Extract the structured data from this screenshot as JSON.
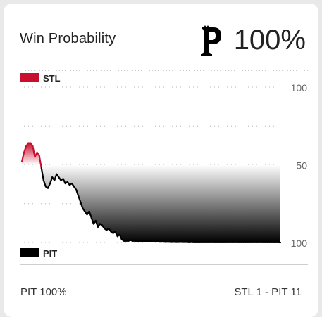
{
  "card": {
    "title": "Win Probability",
    "leader_pct": "100%",
    "leader_logo": "pirates-p-logo",
    "footer_left": "PIT 100%",
    "footer_right": "STL 1 - PIT 11"
  },
  "colors": {
    "away": "#c8102e",
    "home": "#000000"
  },
  "chart_data": {
    "type": "area",
    "title": "",
    "legend": [
      {
        "name": "STL",
        "color": "#c8102e",
        "position": "top-left"
      },
      {
        "name": "PIT",
        "color": "#000000",
        "position": "bottom-left"
      }
    ],
    "y_ticks": [
      "100",
      "50",
      "100"
    ],
    "y_tick_values": [
      100,
      50,
      0
    ],
    "y_tick_meaning": [
      "STL 100%",
      "even",
      "PIT 100%"
    ],
    "ylim": [
      0,
      100
    ],
    "grid": true,
    "x": [
      0,
      1,
      2,
      3,
      4,
      5,
      6,
      7,
      8,
      9,
      10,
      11,
      12,
      13,
      14,
      15,
      16,
      17,
      18,
      19,
      20,
      21,
      22,
      23,
      24,
      25,
      26,
      27,
      28,
      29,
      30,
      31,
      32,
      33,
      34,
      35,
      36,
      37,
      38,
      39,
      40,
      41,
      42,
      43,
      44,
      45,
      46,
      47,
      48,
      49,
      50,
      51,
      52,
      53,
      54,
      55,
      56,
      57,
      58,
      59,
      60,
      61,
      62,
      63,
      64,
      65,
      66,
      67,
      68,
      69,
      70,
      71,
      72,
      73,
      74,
      75,
      76,
      77,
      78,
      79,
      80,
      81,
      82,
      83,
      84,
      85,
      86,
      87,
      88,
      89,
      90,
      91,
      92,
      93,
      94,
      95,
      96,
      97,
      98,
      99,
      100,
      101,
      102,
      103,
      104,
      105,
      106,
      107,
      108,
      109,
      110,
      111,
      112,
      113,
      114,
      115,
      116,
      117,
      118,
      119
    ],
    "stl_win_probability": [
      52,
      58,
      62,
      64,
      64,
      62,
      55,
      58,
      56,
      48,
      40,
      36,
      35,
      38,
      42,
      40,
      44,
      42,
      40,
      41,
      38,
      39,
      37,
      38,
      36,
      34,
      30,
      26,
      22,
      20,
      18,
      20,
      16,
      12,
      14,
      10,
      12,
      11,
      9,
      8,
      9,
      7,
      6,
      7,
      4,
      5,
      2,
      1,
      1,
      1,
      1.5,
      1,
      1,
      0.8,
      1,
      0.7,
      1,
      0.8,
      0.6,
      0.8,
      0.6,
      0.5,
      0.7,
      0.5,
      0.4,
      0.5,
      0.3,
      0.4,
      0.3,
      0.2,
      0.3,
      0.2,
      0.2,
      0.3,
      0.2,
      0.2,
      0.2,
      0.1,
      0.2,
      0.1,
      0.1,
      0.1,
      0.1,
      0.1,
      0.1,
      0.1,
      0.1,
      0.1,
      0.1,
      0.1,
      0.1,
      0.1,
      0.1,
      0.1,
      0.1,
      0.1,
      0.1,
      0.1,
      0.1,
      0.1,
      0.1,
      0.1,
      0.1,
      0.1,
      0.1,
      0.1,
      0.1,
      0.1,
      0.1,
      0.1,
      0.1,
      0.1,
      0.1,
      0.1,
      0.1,
      0.1,
      0.1,
      0.1,
      0.1,
      0
    ]
  }
}
